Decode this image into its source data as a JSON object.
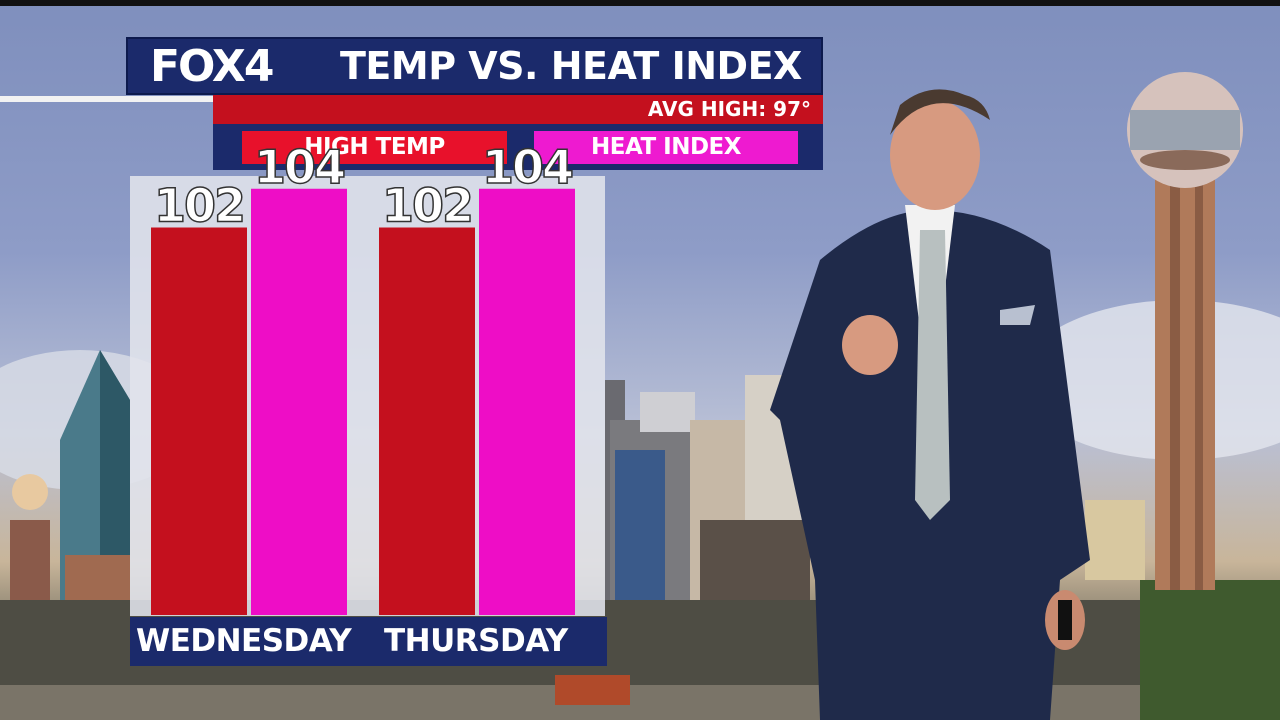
{
  "broadcast": {
    "logo": "FOX4",
    "title": "TEMP VS. HEAT INDEX",
    "avg_high": "AVG HIGH: 97°"
  },
  "legend": {
    "high_temp": "HIGH TEMP",
    "heat_index": "HEAT INDEX"
  },
  "colors": {
    "brand_navy": "#1b2a6b",
    "high_temp": "#c4101e",
    "heat_index": "#ee0dc6",
    "avg_bar": "#c4101e"
  },
  "chart_data": {
    "type": "bar",
    "title": "TEMP VS. HEAT INDEX",
    "categories": [
      "WEDNESDAY",
      "THURSDAY"
    ],
    "series": [
      {
        "name": "HIGH TEMP",
        "values": [
          102,
          102
        ],
        "color": "#c4101e"
      },
      {
        "name": "HEAT INDEX",
        "values": [
          104,
          104
        ],
        "color": "#ee0dc6"
      }
    ],
    "ylim": [
      82,
      106
    ],
    "xlabel": "",
    "ylabel": "",
    "grid": false,
    "legend_position": "top"
  }
}
